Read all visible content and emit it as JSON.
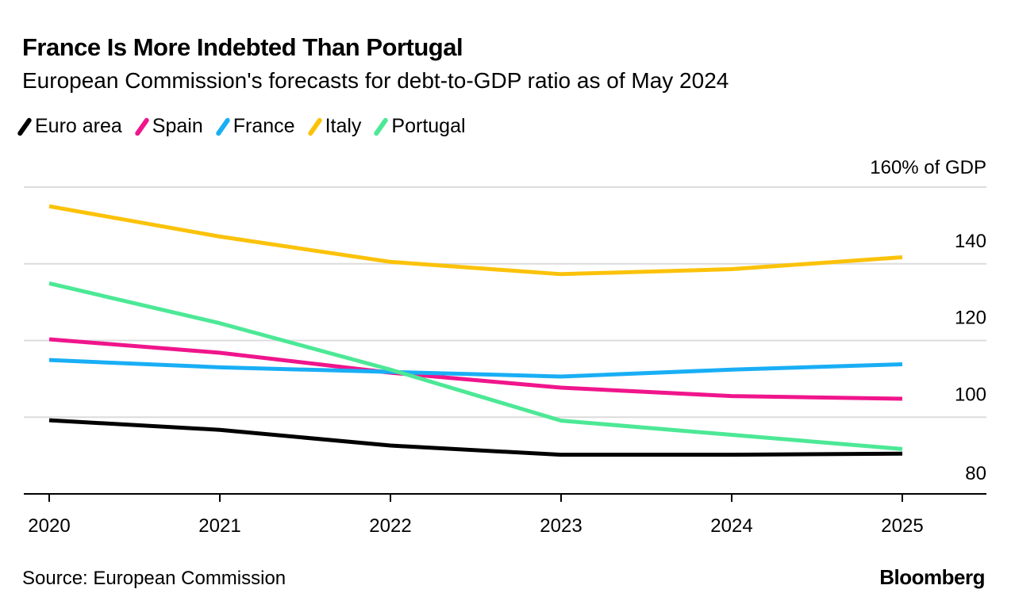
{
  "chart_data": {
    "type": "line",
    "title": "France Is More Indebted Than Portugal",
    "subtitle": "European Commission's forecasts for debt-to-GDP ratio as of May 2024",
    "x": [
      "2020",
      "2021",
      "2022",
      "2023",
      "2024",
      "2025"
    ],
    "ylim": [
      80,
      160
    ],
    "yticks": [
      80,
      100,
      120,
      140,
      160
    ],
    "ytick_labels": [
      "80",
      "100",
      "120",
      "140",
      "160% of GDP"
    ],
    "grid": true,
    "legend_position": "top-left",
    "series": [
      {
        "name": "Euro area",
        "color": "#000000",
        "values": [
          99.2,
          96.7,
          92.6,
          90.2,
          90.2,
          90.5
        ]
      },
      {
        "name": "Spain",
        "color": "#f0158c",
        "values": [
          120.3,
          116.8,
          111.6,
          107.7,
          105.5,
          104.8
        ]
      },
      {
        "name": "France",
        "color": "#19aef5",
        "values": [
          114.9,
          113.0,
          111.8,
          110.6,
          112.4,
          113.8
        ]
      },
      {
        "name": "Italy",
        "color": "#fbc20a",
        "values": [
          155.0,
          147.1,
          140.5,
          137.3,
          138.6,
          141.7
        ]
      },
      {
        "name": "Portugal",
        "color": "#4ce896",
        "values": [
          134.9,
          124.5,
          112.4,
          99.1,
          95.4,
          91.7
        ]
      }
    ],
    "source": "Source: European Commission",
    "brand": "Bloomberg"
  }
}
